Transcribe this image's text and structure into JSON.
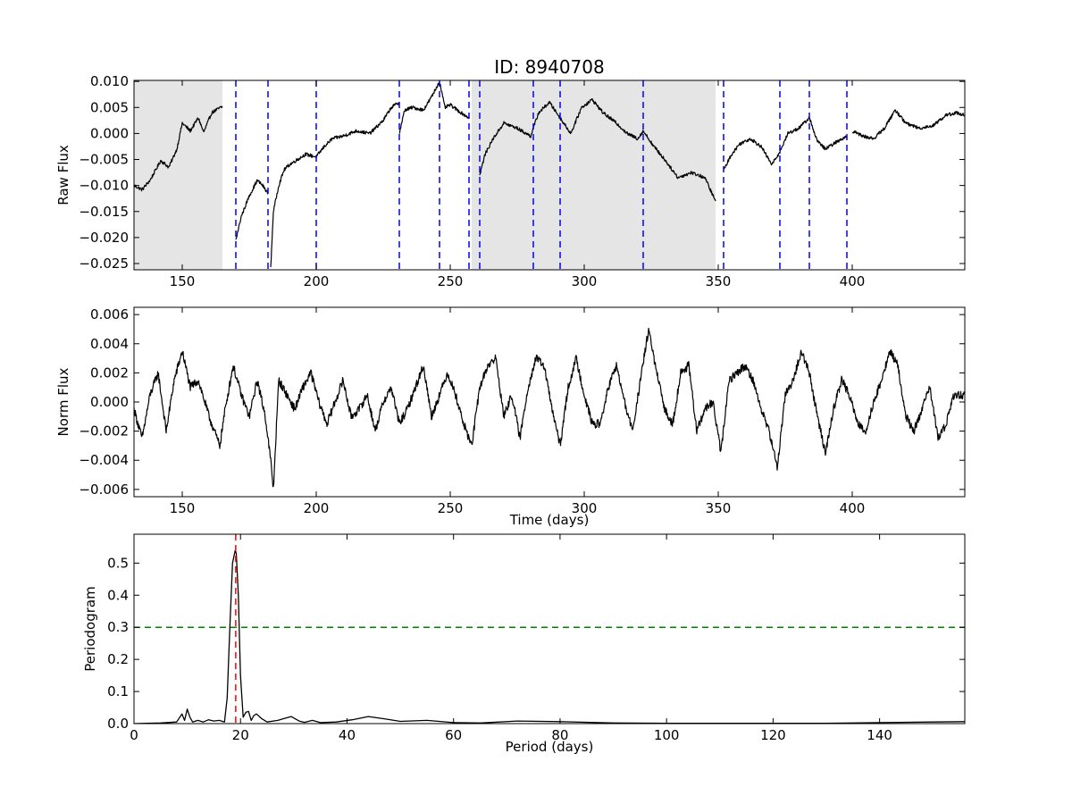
{
  "figure": {
    "title": "ID: 8940708"
  },
  "chart_data": [
    {
      "type": "line",
      "name_key": "raw-flux",
      "title": "ID: 8940708",
      "xlabel": "",
      "ylabel": "Raw Flux",
      "xlim": [
        132,
        442
      ],
      "ylim": [
        -0.0262,
        0.0102
      ],
      "x_ticks": [
        150,
        200,
        250,
        300,
        350,
        400
      ],
      "x_tick_labels": [
        "150",
        "200",
        "250",
        "300",
        "350",
        "400"
      ],
      "y_ticks": [
        0.01,
        0.005,
        0.0,
        -0.005,
        -0.01,
        -0.015,
        -0.02,
        -0.025
      ],
      "y_tick_labels": [
        "0.010",
        "0.005",
        "0.000",
        "−0.005",
        "−0.010",
        "−0.015",
        "−0.020",
        "−0.025"
      ],
      "shaded_regions": [
        [
          132,
          165
        ],
        [
          258,
          349
        ]
      ],
      "vertical_lines_x": [
        170,
        182,
        200,
        231,
        246,
        257,
        261,
        281,
        291,
        322,
        352,
        373,
        384,
        398
      ],
      "vertical_line_color": "#0000ff",
      "shade_color": "#e5e5e5",
      "series": [
        {
          "color": "#000000",
          "segments": [
            {
              "x": [
                132,
                135,
                138,
                142,
                145,
                148,
                150,
                153,
                156,
                158,
                161,
                165
              ],
              "y": [
                -0.01,
                -0.0108,
                -0.009,
                -0.0052,
                -0.0065,
                -0.003,
                0.002,
                0.0005,
                0.003,
                0.0002,
                0.004,
                0.0052
              ]
            },
            {
              "x": [
                170,
                172,
                175,
                178,
                180,
                182
              ],
              "y": [
                -0.0205,
                -0.016,
                -0.012,
                -0.009,
                -0.01,
                -0.0115
              ]
            },
            {
              "x": [
                183,
                184,
                186,
                188,
                190,
                193,
                196,
                200,
                203,
                206,
                210,
                215,
                220,
                225,
                228,
                231
              ],
              "y": [
                -0.026,
                -0.015,
                -0.01,
                -0.007,
                -0.006,
                -0.005,
                -0.004,
                -0.0045,
                -0.0025,
                -0.001,
                -0.0005,
                0.0005,
                0.0,
                0.0025,
                0.005,
                0.006
              ]
            },
            {
              "x": [
                231,
                233,
                236,
                240,
                243,
                246,
                248,
                250,
                254,
                257
              ],
              "y": [
                0.0,
                0.0045,
                0.005,
                0.0045,
                0.007,
                0.01,
                0.005,
                0.0055,
                0.004,
                0.003
              ]
            },
            {
              "x": [
                261,
                263,
                266,
                270,
                275,
                280,
                283,
                287,
                291,
                295,
                299,
                303,
                307,
                312,
                316,
                320,
                322,
                326,
                330,
                335,
                340,
                345,
                349
              ],
              "y": [
                -0.008,
                -0.004,
                -0.001,
                0.002,
                0.001,
                -0.0005,
                0.004,
                0.006,
                0.003,
                0.0,
                0.005,
                0.0065,
                0.004,
                0.002,
                0.0,
                -0.001,
                0.0005,
                -0.0025,
                -0.005,
                -0.0085,
                -0.0075,
                -0.0085,
                -0.013
              ]
            },
            {
              "x": [
                352,
                355,
                358,
                362,
                366,
                370,
                373,
                376,
                380,
                384,
                387,
                390,
                393,
                398
              ],
              "y": [
                -0.007,
                -0.004,
                -0.002,
                -0.001,
                -0.0025,
                -0.006,
                -0.0035,
                0.0,
                0.001,
                0.003,
                -0.0015,
                -0.003,
                -0.002,
                -0.0005
              ]
            },
            {
              "x": [
                400,
                404,
                408,
                412,
                416,
                420,
                425,
                430,
                435,
                439,
                442
              ],
              "y": [
                0.0005,
                -0.0005,
                -0.001,
                0.001,
                0.0045,
                0.002,
                0.001,
                0.0015,
                0.0035,
                0.004,
                0.0035
              ]
            }
          ]
        }
      ]
    },
    {
      "type": "line",
      "name_key": "norm-flux",
      "title": "",
      "xlabel": "Time (days)",
      "ylabel": "Norm Flux",
      "xlim": [
        132,
        442
      ],
      "ylim": [
        -0.0065,
        0.0065
      ],
      "x_ticks": [
        150,
        200,
        250,
        300,
        350,
        400
      ],
      "x_tick_labels": [
        "150",
        "200",
        "250",
        "300",
        "350",
        "400"
      ],
      "y_ticks": [
        0.006,
        0.004,
        0.002,
        0.0,
        -0.002,
        -0.004,
        -0.006
      ],
      "y_tick_labels": [
        "0.006",
        "0.004",
        "0.002",
        "0.000",
        "−0.002",
        "−0.004",
        "−0.006"
      ],
      "series": [
        {
          "color": "#000000",
          "segments": [
            {
              "x": [
                132,
                135,
                138,
                141,
                144,
                147,
                150,
                153,
                156,
                160,
                164,
                166,
                169,
                172,
                175,
                178,
                181,
                183,
                184,
                186,
                189,
                192,
                195,
                198,
                201,
                204,
                207,
                210,
                213,
                216,
                219,
                222,
                225,
                228,
                231,
                234,
                237,
                240,
                243,
                246,
                249,
                252,
                255,
                258,
                261,
                264,
                267,
                270,
                273,
                276,
                279,
                282,
                285,
                288,
                291,
                294,
                297,
                300,
                303,
                306,
                309,
                312,
                315,
                318,
                321,
                324,
                327,
                330,
                333,
                336,
                339,
                342,
                345,
                348,
                351,
                354,
                357,
                360,
                363,
                366,
                369,
                372,
                375,
                378,
                381,
                384,
                387,
                390,
                393,
                396,
                399,
                402,
                405,
                408,
                411,
                414,
                417,
                420,
                423,
                426,
                429,
                432,
                435,
                438,
                442
              ],
              "y": [
                -0.0005,
                -0.0025,
                0.0005,
                0.002,
                -0.002,
                0.0015,
                0.0035,
                0.001,
                0.0015,
                -0.001,
                -0.003,
                -0.0005,
                0.0025,
                0.0005,
                -0.001,
                0.0015,
                -0.001,
                -0.004,
                -0.006,
                0.0015,
                0.0005,
                -0.0005,
                0.001,
                0.002,
                0.0,
                -0.0015,
                0.0,
                0.0015,
                -0.001,
                -0.0005,
                0.0005,
                -0.002,
                0.0,
                0.001,
                -0.0015,
                -0.0005,
                0.001,
                0.0025,
                -0.001,
                0.0005,
                0.002,
                0.0005,
                -0.0015,
                -0.003,
                0.001,
                0.0025,
                0.003,
                -0.001,
                0.0005,
                -0.0025,
                0.001,
                0.003,
                0.0025,
                -0.0005,
                -0.003,
                0.001,
                0.003,
                0.0005,
                -0.0015,
                -0.0015,
                0.001,
                0.0025,
                0.0,
                -0.002,
                0.0015,
                0.005,
                0.002,
                -0.0005,
                -0.0015,
                0.002,
                0.0025,
                -0.002,
                -0.0005,
                0.0,
                -0.0035,
                0.0015,
                0.002,
                0.0025,
                0.0015,
                -0.0005,
                -0.002,
                -0.0045,
                0.0005,
                0.0015,
                0.0035,
                0.002,
                -0.001,
                -0.0035,
                -0.0005,
                0.0015,
                0.0005,
                -0.0015,
                -0.002,
                0.0,
                0.0015,
                0.0035,
                0.0025,
                -0.001,
                -0.002,
                -0.0005,
                0.001,
                -0.0025,
                -0.0015,
                0.0005,
                0.0005
              ]
            }
          ]
        }
      ]
    },
    {
      "type": "line",
      "name_key": "periodogram",
      "title": "",
      "xlabel": "Period (days)",
      "ylabel": "Periodogram",
      "xlim": [
        0,
        156
      ],
      "ylim": [
        0,
        0.59
      ],
      "x_ticks": [
        0,
        20,
        40,
        60,
        80,
        100,
        120,
        140
      ],
      "x_tick_labels": [
        "0",
        "20",
        "40",
        "60",
        "80",
        "100",
        "120",
        "140"
      ],
      "y_ticks": [
        0.0,
        0.1,
        0.2,
        0.3,
        0.4,
        0.5
      ],
      "y_tick_labels": [
        "0.0",
        "0.1",
        "0.2",
        "0.3",
        "0.4",
        "0.5"
      ],
      "threshold_y": 0.3,
      "threshold_color": "#008000",
      "peak_x": 19.1,
      "peak_color": "#ff0000",
      "series": [
        {
          "color": "#000000",
          "segments": [
            {
              "x": [
                0,
                5,
                8,
                9,
                9.5,
                10,
                10.5,
                11,
                12,
                13,
                14,
                15,
                16,
                17,
                17.5,
                18,
                18.5,
                19,
                19.2,
                19.6,
                20,
                20.5,
                21,
                21.5,
                22,
                22.5,
                23,
                24,
                25,
                27,
                28,
                29.5,
                31,
                32,
                33.5,
                35,
                38,
                41,
                44,
                47,
                50,
                55,
                60,
                65,
                72,
                80,
                90,
                100,
                110,
                120,
                130,
                140,
                150,
                156
              ],
              "y": [
                0.0,
                0.002,
                0.005,
                0.03,
                0.01,
                0.045,
                0.02,
                0.005,
                0.01,
                0.005,
                0.012,
                0.008,
                0.01,
                0.005,
                0.08,
                0.3,
                0.5,
                0.54,
                0.53,
                0.4,
                0.15,
                0.02,
                0.035,
                0.038,
                0.01,
                0.025,
                0.03,
                0.015,
                0.005,
                0.01,
                0.015,
                0.022,
                0.008,
                0.004,
                0.01,
                0.003,
                0.005,
                0.012,
                0.022,
                0.015,
                0.007,
                0.01,
                0.003,
                0.002,
                0.008,
                0.006,
                0.002,
                0.001,
                0.001,
                0.001,
                0.001,
                0.003,
                0.005,
                0.006
              ]
            }
          ]
        }
      ]
    }
  ]
}
